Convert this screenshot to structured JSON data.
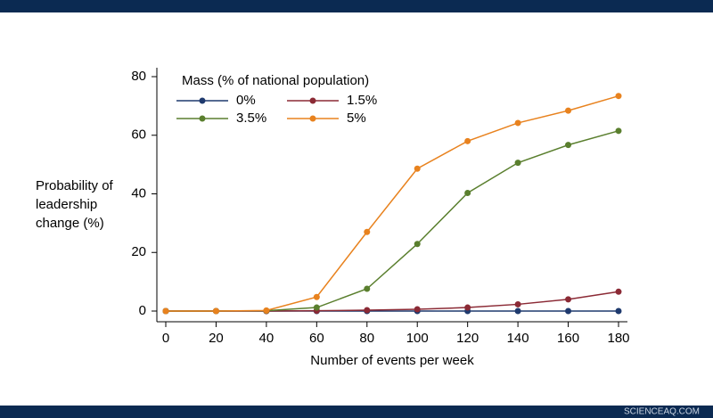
{
  "chart_data": {
    "type": "line",
    "x_label": "Number of events per week",
    "y_label": [
      "Probability of",
      "leadership",
      "change (%)"
    ],
    "legend_title": "Mass (% of national population)",
    "x": [
      0,
      20,
      40,
      60,
      80,
      100,
      120,
      140,
      160,
      180
    ],
    "series": [
      {
        "name": "0%",
        "color": "#1f3a6e",
        "values": [
          0,
          0,
          0,
          0,
          0,
          0,
          0,
          0,
          0,
          0
        ]
      },
      {
        "name": "1.5%",
        "color": "#8b2a35",
        "values": [
          0,
          0,
          0,
          0.1,
          0.3,
          0.6,
          1.2,
          2.3,
          4,
          6.6
        ]
      },
      {
        "name": "3.5%",
        "color": "#5a7f2e",
        "values": [
          0,
          0,
          0.1,
          1.2,
          7.6,
          22.9,
          40.3,
          50.6,
          56.7,
          61.5
        ]
      },
      {
        "name": "5%",
        "color": "#e8821e",
        "values": [
          0,
          0,
          0.2,
          4.8,
          27,
          48.6,
          58,
          64.2,
          68.4,
          73.4
        ]
      }
    ],
    "xlim": [
      0,
      180
    ],
    "xticks": [
      0,
      20,
      40,
      60,
      80,
      100,
      120,
      140,
      160,
      180
    ],
    "ylim": [
      0,
      80
    ],
    "yticks": [
      0,
      20,
      40,
      60,
      80
    ]
  },
  "watermark": "SCIENCEAQ.COM"
}
